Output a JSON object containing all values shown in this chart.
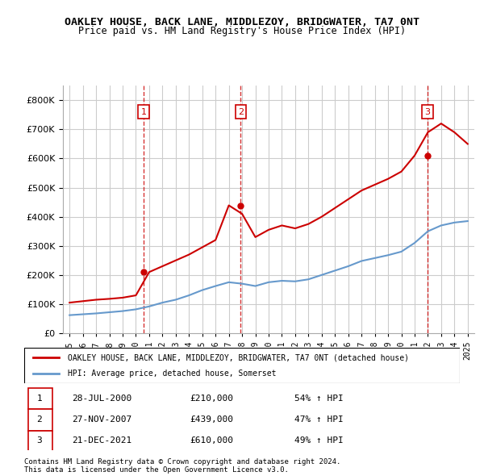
{
  "title": "OAKLEY HOUSE, BACK LANE, MIDDLEZOY, BRIDGWATER, TA7 0NT",
  "subtitle": "Price paid vs. HM Land Registry's House Price Index (HPI)",
  "legend_line1": "OAKLEY HOUSE, BACK LANE, MIDDLEZOY, BRIDGWATER, TA7 0NT (detached house)",
  "legend_line2": "HPI: Average price, detached house, Somerset",
  "footer1": "Contains HM Land Registry data © Crown copyright and database right 2024.",
  "footer2": "This data is licensed under the Open Government Licence v3.0.",
  "transactions": [
    {
      "num": 1,
      "date": "28-JUL-2000",
      "price": "£210,000",
      "hpi": "54% ↑ HPI"
    },
    {
      "num": 2,
      "date": "27-NOV-2007",
      "price": "£439,000",
      "hpi": "47% ↑ HPI"
    },
    {
      "num": 3,
      "date": "21-DEC-2021",
      "price": "£610,000",
      "hpi": "49% ↑ HPI"
    }
  ],
  "sale_years": [
    2000.58,
    2007.9,
    2021.97
  ],
  "sale_prices": [
    210000,
    439000,
    610000
  ],
  "hpi_color": "#6699cc",
  "price_color": "#cc0000",
  "vline_color": "#cc0000",
  "grid_color": "#cccccc",
  "bg_color": "#ffffff",
  "ylim": [
    0,
    850000
  ],
  "yticks": [
    0,
    100000,
    200000,
    300000,
    400000,
    500000,
    600000,
    700000,
    800000
  ],
  "hpi_data_years": [
    1995,
    1996,
    1997,
    1998,
    1999,
    2000,
    2001,
    2002,
    2003,
    2004,
    2005,
    2006,
    2007,
    2008,
    2009,
    2010,
    2011,
    2012,
    2013,
    2014,
    2015,
    2016,
    2017,
    2018,
    2019,
    2020,
    2021,
    2022,
    2023,
    2024,
    2025
  ],
  "hpi_values": [
    62000,
    65000,
    68000,
    72000,
    76000,
    82000,
    92000,
    105000,
    115000,
    130000,
    148000,
    162000,
    175000,
    170000,
    162000,
    175000,
    180000,
    178000,
    185000,
    200000,
    215000,
    230000,
    248000,
    258000,
    268000,
    280000,
    310000,
    350000,
    370000,
    380000,
    385000
  ],
  "price_data_years": [
    1995,
    1996,
    1997,
    1998,
    1999,
    2000,
    2001,
    2002,
    2003,
    2004,
    2005,
    2006,
    2007,
    2008,
    2009,
    2010,
    2011,
    2012,
    2013,
    2014,
    2015,
    2016,
    2017,
    2018,
    2019,
    2020,
    2021,
    2022,
    2023,
    2024,
    2025
  ],
  "price_line_values": [
    105000,
    110000,
    115000,
    118000,
    122000,
    130000,
    210000,
    230000,
    250000,
    270000,
    295000,
    320000,
    439000,
    410000,
    330000,
    355000,
    370000,
    360000,
    375000,
    400000,
    430000,
    460000,
    490000,
    510000,
    530000,
    555000,
    610000,
    690000,
    720000,
    690000,
    650000
  ]
}
